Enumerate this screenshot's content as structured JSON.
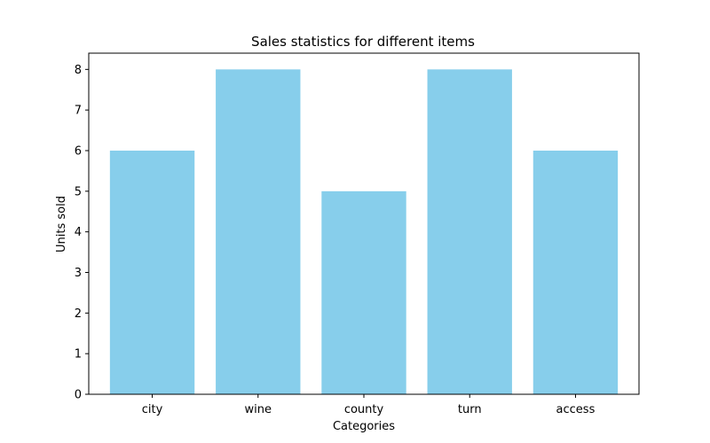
{
  "chart_data": {
    "type": "bar",
    "title": "Sales statistics for different items",
    "xlabel": "Categories",
    "ylabel": "Units sold",
    "categories": [
      "city",
      "wine",
      "county",
      "turn",
      "access"
    ],
    "values": [
      6,
      8,
      5,
      8,
      6
    ],
    "ylim": [
      0,
      8
    ],
    "yticks": [
      0,
      1,
      2,
      3,
      4,
      5,
      6,
      7,
      8
    ],
    "bar_color": "#87CEEB",
    "grid": false,
    "legend": "none"
  }
}
